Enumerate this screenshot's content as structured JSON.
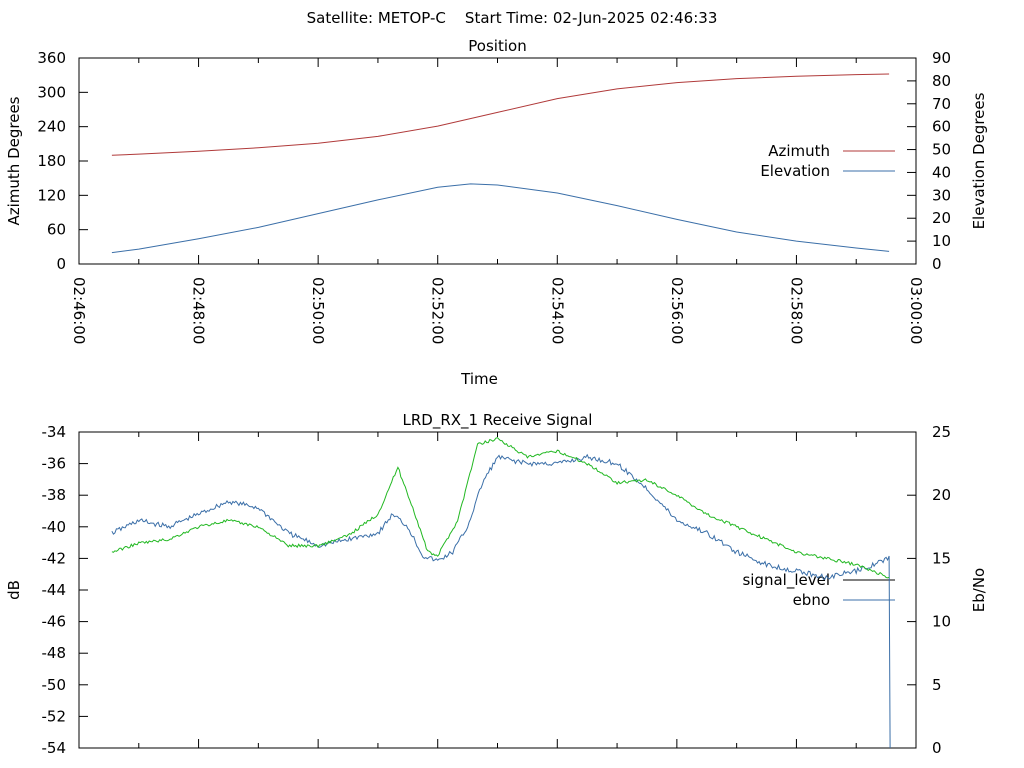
{
  "header": {
    "title": "Satellite: METOP-C    Start Time: 02-Jun-2025 02:46:33"
  },
  "chart_data": [
    {
      "type": "line",
      "title": "Position",
      "xlabel": "Time",
      "ylabel": "Azimuth Degrees",
      "y2label": "Elevation Degrees",
      "xlim": [
        "02:46:00",
        "03:00:00"
      ],
      "x_ticks": [
        "02:46:00",
        "02:48:00",
        "02:50:00",
        "02:52:00",
        "02:54:00",
        "02:56:00",
        "02:58:00",
        "03:00:00"
      ],
      "ylim": [
        0,
        360
      ],
      "y_ticks": [
        0,
        60,
        120,
        180,
        240,
        300,
        360
      ],
      "y2lim": [
        0,
        90
      ],
      "y2_ticks": [
        0,
        10,
        20,
        30,
        40,
        50,
        60,
        70,
        80,
        90
      ],
      "legend_position": "right",
      "series": [
        {
          "name": "Azimuth",
          "axis": "y",
          "color": "#b03a3a",
          "x": [
            "02:46:33",
            "02:47:00",
            "02:48:00",
            "02:49:00",
            "02:50:00",
            "02:51:00",
            "02:52:00",
            "02:53:00",
            "02:54:00",
            "02:55:00",
            "02:56:00",
            "02:57:00",
            "02:58:00",
            "02:59:00",
            "02:59:33"
          ],
          "values": [
            190,
            192,
            197,
            203,
            211,
            223,
            241,
            265,
            289,
            306,
            317,
            324,
            328,
            331,
            332
          ]
        },
        {
          "name": "Elevation",
          "axis": "y2",
          "color": "#3b6fa8",
          "x": [
            "02:46:33",
            "02:47:00",
            "02:48:00",
            "02:49:00",
            "02:50:00",
            "02:51:00",
            "02:52:00",
            "02:52:33",
            "02:53:00",
            "02:54:00",
            "02:55:00",
            "02:56:00",
            "02:57:00",
            "02:58:00",
            "02:59:00",
            "02:59:33"
          ],
          "values": [
            5,
            6.5,
            11,
            16,
            22,
            28,
            33.5,
            35,
            34.5,
            31,
            25.5,
            19.5,
            14,
            10,
            7,
            5.5
          ]
        }
      ]
    },
    {
      "type": "line",
      "title": "LRD_RX_1 Receive Signal",
      "xlabel": "",
      "ylabel": "dB",
      "y2label": "Eb/No",
      "xlim": [
        "02:46:00",
        "03:00:00"
      ],
      "ylim": [
        -54,
        -34
      ],
      "y_ticks": [
        -54,
        -52,
        -50,
        -48,
        -46,
        -44,
        -42,
        -40,
        -38,
        -36,
        -34
      ],
      "y2lim": [
        0,
        25
      ],
      "y2_ticks": [
        0,
        5,
        10,
        15,
        20,
        25
      ],
      "legend_position": "right",
      "series": [
        {
          "name": "signal_level",
          "axis": "y",
          "color": "#000000",
          "x": [],
          "values": []
        },
        {
          "name": "ebno",
          "axis": "y2",
          "color": "#3b6fa8",
          "x": [
            "02:46:33",
            "02:47:00",
            "02:47:30",
            "02:48:00",
            "02:48:30",
            "02:49:00",
            "02:49:30",
            "02:50:00",
            "02:50:30",
            "02:51:00",
            "02:51:15",
            "02:51:30",
            "02:51:45",
            "02:52:00",
            "02:52:15",
            "02:52:30",
            "02:52:45",
            "02:53:00",
            "02:53:30",
            "02:54:00",
            "02:54:30",
            "02:55:00",
            "02:55:30",
            "02:56:00",
            "02:56:30",
            "02:57:00",
            "02:57:30",
            "02:58:00",
            "02:58:30",
            "02:59:00",
            "02:59:33",
            "02:59:34"
          ],
          "values": [
            17,
            18,
            17.5,
            18.5,
            19.5,
            19,
            17,
            16,
            16.5,
            17,
            18.5,
            17.5,
            15.2,
            14.8,
            15.5,
            17.5,
            21,
            23,
            22.5,
            22.5,
            23,
            22.5,
            20.5,
            18,
            17,
            15.5,
            14.5,
            14,
            13.5,
            14,
            15,
            0
          ]
        },
        {
          "name": "",
          "axis": "y2",
          "color": "#22b822",
          "x": [
            "02:46:33",
            "02:47:00",
            "02:47:30",
            "02:48:00",
            "02:48:30",
            "02:49:00",
            "02:49:30",
            "02:50:00",
            "02:50:30",
            "02:51:00",
            "02:51:20",
            "02:51:35",
            "02:51:50",
            "02:52:00",
            "02:52:20",
            "02:52:40",
            "02:53:00",
            "02:53:30",
            "02:54:00",
            "02:54:30",
            "02:55:00",
            "02:55:30",
            "02:56:00",
            "02:56:30",
            "02:57:00",
            "02:57:30",
            "02:58:00",
            "02:58:30",
            "02:59:00",
            "02:59:33"
          ],
          "values": [
            15.5,
            16.2,
            16.5,
            17.5,
            18,
            17.5,
            16,
            16,
            16.8,
            18.5,
            22.2,
            19,
            15.5,
            15.2,
            18,
            24,
            24.5,
            23,
            23.5,
            22.5,
            21,
            21.2,
            20,
            18.5,
            17.5,
            16.5,
            15.5,
            15,
            14.5,
            13.5
          ]
        }
      ]
    }
  ]
}
